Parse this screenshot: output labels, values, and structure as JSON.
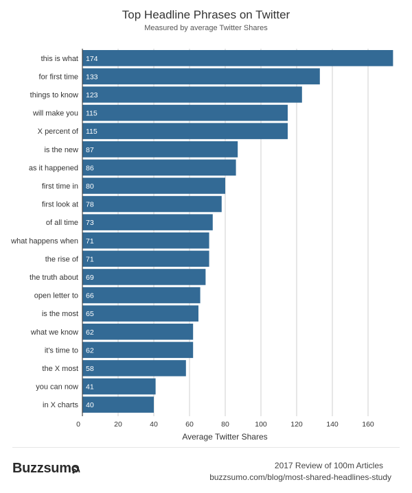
{
  "chart_data": {
    "type": "bar",
    "orientation": "horizontal",
    "title": "Top Headline Phrases on Twitter",
    "subtitle": "Measured by average Twitter Shares",
    "xlabel": "Average Twitter Shares",
    "ylabel": "",
    "xlim": [
      0,
      175
    ],
    "xticks": [
      0,
      20,
      40,
      60,
      80,
      100,
      120,
      140,
      160
    ],
    "grid": true,
    "bar_color": "#336a95",
    "categories": [
      "this is what",
      "for first time",
      "things to know",
      "will make you",
      "X percent of",
      "is the new",
      "as it happened",
      "first time in",
      "first look at",
      "of all time",
      "what happens when",
      "the rise of",
      "the truth about",
      "open letter to",
      "is the most",
      "what we know",
      "it's time to",
      "the X most",
      "you can now",
      "in X charts"
    ],
    "values": [
      174,
      133,
      123,
      115,
      115,
      87,
      86,
      80,
      78,
      73,
      71,
      71,
      69,
      66,
      65,
      62,
      62,
      58,
      41,
      40
    ]
  },
  "footer": {
    "logo": "Buzzsumo",
    "review": "2017 Review of 100m Articles",
    "url": "buzzsumo.com/blog/most-shared-headlines-study"
  }
}
